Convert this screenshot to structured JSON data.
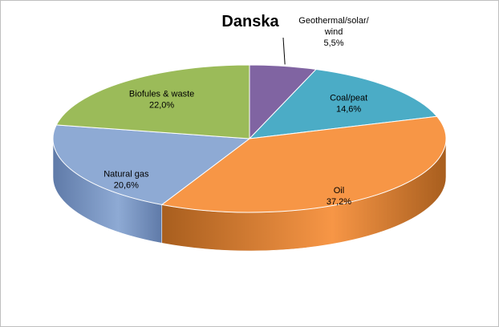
{
  "chart_data": {
    "type": "pie",
    "title": "Danska",
    "categories": [
      "Geothermal/solar/wind",
      "Coal/peat",
      "Oil",
      "Natural gas",
      "Biofules & waste"
    ],
    "values": [
      5.5,
      14.6,
      37.2,
      20.6,
      22.0
    ],
    "labels": [
      {
        "lines": [
          "Geothermal/solar/",
          "wind",
          "5,5%"
        ]
      },
      {
        "lines": [
          "Coal/peat",
          "14,6%"
        ]
      },
      {
        "lines": [
          "Oil",
          "37,2%"
        ]
      },
      {
        "lines": [
          "Natural gas",
          "20,6%"
        ]
      },
      {
        "lines": [
          "Biofules & waste",
          "22,0%"
        ]
      }
    ],
    "colors": [
      "#8064a2",
      "#4bacc6",
      "#f79646",
      "#8eaad4",
      "#9bbb59"
    ],
    "side_colors": [
      "#5b467a",
      "#2f7f96",
      "#a85e1e",
      "#5f7aa8",
      "#6e8a36"
    ],
    "start_angle_deg": 90,
    "direction": "clockwise",
    "legend": "none",
    "view": "3d"
  }
}
